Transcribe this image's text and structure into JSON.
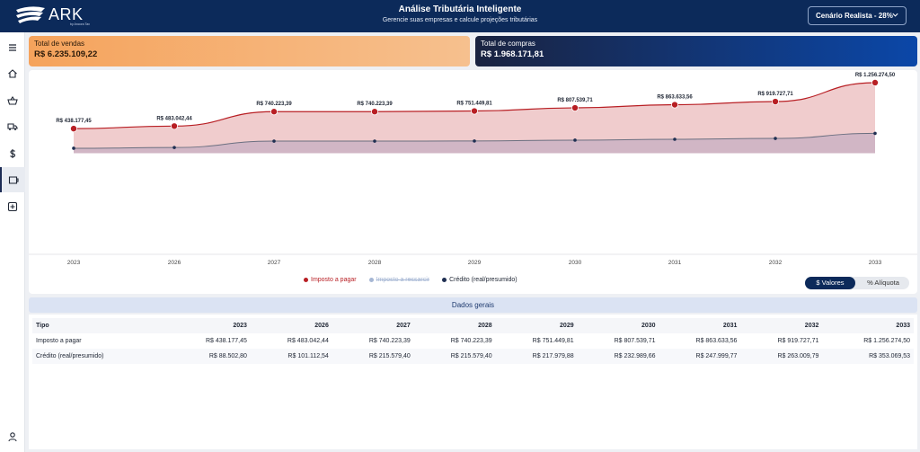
{
  "header": {
    "logo_text": "ARK",
    "logo_subtext": "by Ancora Tax",
    "title": "Análise Tributária Inteligente",
    "subtitle": "Gerencie suas empresas e calcule projeções tributárias",
    "scenario_label": "Cenário Realista - 28%"
  },
  "sidebar": {
    "items": [
      {
        "name": "menu-icon"
      },
      {
        "name": "home-icon"
      },
      {
        "name": "basket-icon"
      },
      {
        "name": "truck-icon"
      },
      {
        "name": "dollar-icon"
      },
      {
        "name": "wallet-icon",
        "active": true
      },
      {
        "name": "plus-square-icon"
      },
      {
        "name": "user-icon"
      }
    ]
  },
  "cards": {
    "sales": {
      "label": "Total de vendas",
      "value": "R$ 6.235.109,22"
    },
    "purchases": {
      "label": "Total de compras",
      "value": "R$ 1.968.171,81"
    }
  },
  "colors": {
    "tax": "#b81f24",
    "tax_fill": "#eec6c8",
    "credit": "#1f2f52",
    "credit_fill": "#cdb4c4",
    "refund": "#a6b7d4"
  },
  "chart_data": {
    "type": "area",
    "categories": [
      "2023",
      "2026",
      "2027",
      "2028",
      "2029",
      "2030",
      "2031",
      "2032",
      "2033"
    ],
    "series": [
      {
        "name": "Imposto a pagar",
        "values": [
          438177.45,
          483042.44,
          740223.39,
          740223.39,
          751449.81,
          807539.71,
          863633.56,
          919727.71,
          1256274.5
        ],
        "labels": [
          "R$ 438.177,45",
          "R$ 483.042,44",
          "R$ 740.223,39",
          "R$ 740.223,39",
          "R$ 751.449,81",
          "R$ 807.539,71",
          "R$ 863.633,56",
          "R$ 919.727,71",
          "R$ 1.256.274,50"
        ]
      },
      {
        "name": "Imposto a ressarcir",
        "values": [
          0,
          0,
          0,
          0,
          0,
          0,
          0,
          0,
          0
        ],
        "hidden": true
      },
      {
        "name": "Crédito (real/presumido)",
        "values": [
          88502.8,
          101112.54,
          215579.4,
          215579.4,
          217979.88,
          232989.66,
          247999.77,
          263009.79,
          353069.53
        ]
      }
    ],
    "ylim": [
      -1800000,
      1400000
    ]
  },
  "legend": {
    "tax": "Imposto a pagar",
    "refund": "Imposto a ressarcir",
    "credit": "Crédito (real/presumido)"
  },
  "toggle": {
    "values": "$ Valores",
    "rate": "% Alíquota"
  },
  "table": {
    "section_title": "Dados gerais",
    "headers": [
      "Tipo",
      "2023",
      "2026",
      "2027",
      "2028",
      "2029",
      "2030",
      "2031",
      "2032",
      "2033"
    ],
    "rows": [
      [
        "Imposto a pagar",
        "R$ 438.177,45",
        "R$ 483.042,44",
        "R$ 740.223,39",
        "R$ 740.223,39",
        "R$ 751.449,81",
        "R$ 807.539,71",
        "R$ 863.633,56",
        "R$ 919.727,71",
        "R$ 1.256.274,50"
      ],
      [
        "Crédito (real/presumido)",
        "R$ 88.502,80",
        "R$ 101.112,54",
        "R$ 215.579,40",
        "R$ 215.579,40",
        "R$ 217.979,88",
        "R$ 232.989,66",
        "R$ 247.999,77",
        "R$ 263.009,79",
        "R$ 353.069,53"
      ]
    ]
  }
}
